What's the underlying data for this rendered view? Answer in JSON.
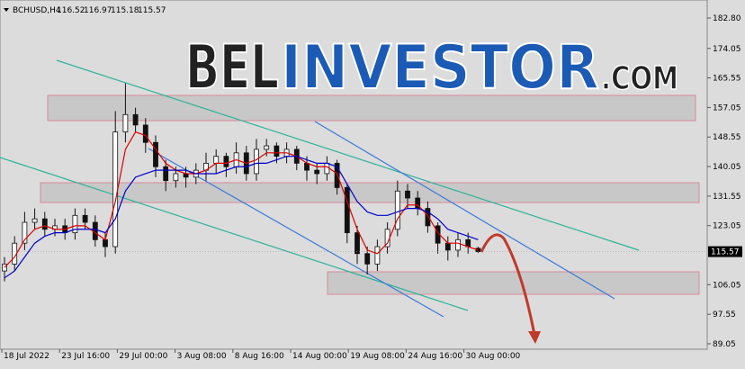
{
  "chart_data": {
    "type": "candlestick",
    "symbol": "BCHUSD,H4",
    "header_values": [
      116.52,
      116.97,
      115.18,
      115.57
    ],
    "watermark": {
      "brand": "BEL",
      "name": "INVESTOR",
      "suffix": ".COM"
    },
    "last_price": 115.57,
    "x_labels": [
      "18 Jul 2022",
      "23 Jul 16:00",
      "29 Jul 00:00",
      "3 Aug 08:00",
      "8 Aug 16:00",
      "14 Aug 00:00",
      "19 Aug 08:00",
      "24 Aug 16:00",
      "30 Aug 00:00"
    ],
    "ylim": [
      87.49,
      187.98
    ],
    "yticks": [
      {
        "value": 182.8,
        "label": "182.80"
      },
      174.05,
      165.55,
      157.05,
      148.55,
      140.05,
      131.55,
      123.05,
      106.05,
      97.55,
      89.05
    ],
    "open": [
      110,
      112,
      118,
      124,
      125,
      122,
      123,
      121,
      126,
      124,
      119,
      117,
      150,
      155,
      152,
      147,
      140,
      136,
      138,
      137,
      139,
      141,
      143,
      140,
      144,
      138,
      145,
      146,
      143,
      145,
      141,
      139,
      138,
      141,
      134,
      121,
      115,
      112,
      117,
      122,
      133,
      131,
      128,
      123,
      118,
      116,
      119,
      116.52
    ],
    "high": [
      114,
      120,
      127,
      128,
      127,
      125,
      125,
      128,
      128,
      126,
      121,
      156,
      164,
      157,
      154,
      149,
      142,
      140,
      140,
      141,
      144,
      145,
      144,
      147,
      146,
      148,
      148,
      147,
      147,
      146,
      143,
      141,
      143,
      142,
      135,
      123,
      117,
      119,
      124,
      136,
      135,
      133,
      130,
      124,
      120,
      121,
      121,
      116.97
    ],
    "low": [
      107,
      110,
      116,
      122,
      120,
      120,
      119,
      119,
      122,
      117,
      114,
      115,
      147,
      150,
      144,
      137,
      133,
      134,
      134,
      135,
      136,
      138,
      137,
      138,
      136,
      136,
      143,
      141,
      141,
      139,
      136,
      135,
      136,
      132,
      118,
      112,
      109,
      110,
      115,
      120,
      128,
      126,
      121,
      115,
      113,
      114,
      115,
      115.18
    ],
    "close": [
      112,
      118,
      124,
      125,
      122,
      123,
      121,
      126,
      124,
      119,
      117,
      150,
      155,
      152,
      147,
      140,
      136,
      138,
      137,
      139,
      141,
      143,
      140,
      144,
      138,
      145,
      146,
      143,
      145,
      141,
      139,
      138,
      141,
      134,
      121,
      115,
      112,
      117,
      122,
      133,
      131,
      128,
      123,
      118,
      116,
      119,
      117,
      115.57
    ],
    "candle_color": "#111111",
    "lines": [
      {
        "color": "#dd0000",
        "values": [
          111,
          114,
          119,
          122,
          123,
          122,
          122,
          123,
          123,
          121,
          119,
          130,
          145,
          150,
          149,
          145,
          141,
          139,
          138,
          138,
          139,
          141,
          141,
          142,
          141,
          142,
          144,
          144,
          144,
          143,
          141,
          140,
          140,
          138,
          130,
          122,
          116,
          115,
          118,
          125,
          129,
          129,
          126,
          121,
          118,
          118,
          117,
          116
        ]
      },
      {
        "color": "#0000cc",
        "values": [
          108,
          110,
          114,
          118,
          120,
          121,
          121,
          122,
          122,
          122,
          121,
          125,
          133,
          137,
          138,
          139,
          139,
          139,
          139,
          138,
          138,
          138,
          139,
          140,
          140,
          141,
          141,
          142,
          143,
          143,
          142,
          141,
          141,
          140,
          135,
          130,
          127,
          126,
          126,
          127,
          128,
          128,
          127,
          125,
          122,
          121,
          120,
          119
        ]
      }
    ]
  }
}
